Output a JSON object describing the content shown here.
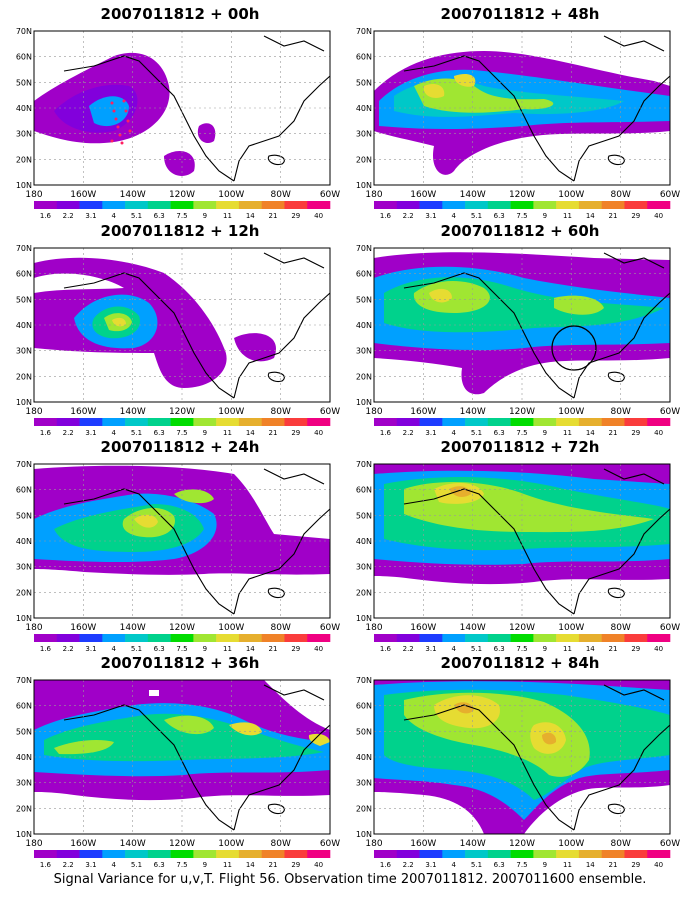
{
  "panels": [
    {
      "title": "2007011812 + 00h"
    },
    {
      "title": "2007011812 + 48h"
    },
    {
      "title": "2007011812 + 12h"
    },
    {
      "title": "2007011812 + 60h"
    },
    {
      "title": "2007011812 + 24h"
    },
    {
      "title": "2007011812 + 72h"
    },
    {
      "title": "2007011812 + 36h"
    },
    {
      "title": "2007011812 + 84h"
    }
  ],
  "lat_labels": [
    "70N",
    "60N",
    "50N",
    "40N",
    "30N",
    "20N",
    "10N"
  ],
  "lon_labels": [
    "180",
    "160W",
    "140W",
    "120W",
    "100W",
    "80W",
    "60W"
  ],
  "colorbar": {
    "labels": [
      "1.6",
      "2.2",
      "3.1",
      "4",
      "5.1",
      "6.3",
      "7.5",
      "9",
      "11",
      "14",
      "21",
      "29",
      "40"
    ],
    "colors": [
      "#a000c8",
      "#8200dc",
      "#1e3cff",
      "#00a0ff",
      "#00c8c8",
      "#00d28c",
      "#00dc00",
      "#a0e632",
      "#e6dc32",
      "#e6af2d",
      "#f08228",
      "#fa3c3c",
      "#f00082"
    ]
  },
  "overlays": {
    "panel_00h": "red trajectory dots",
    "panel_60h": "black circle"
  },
  "caption": "Signal Variance for u,v,T. Flight 56. Observation time 2007011812. 2007011600 ensemble."
}
